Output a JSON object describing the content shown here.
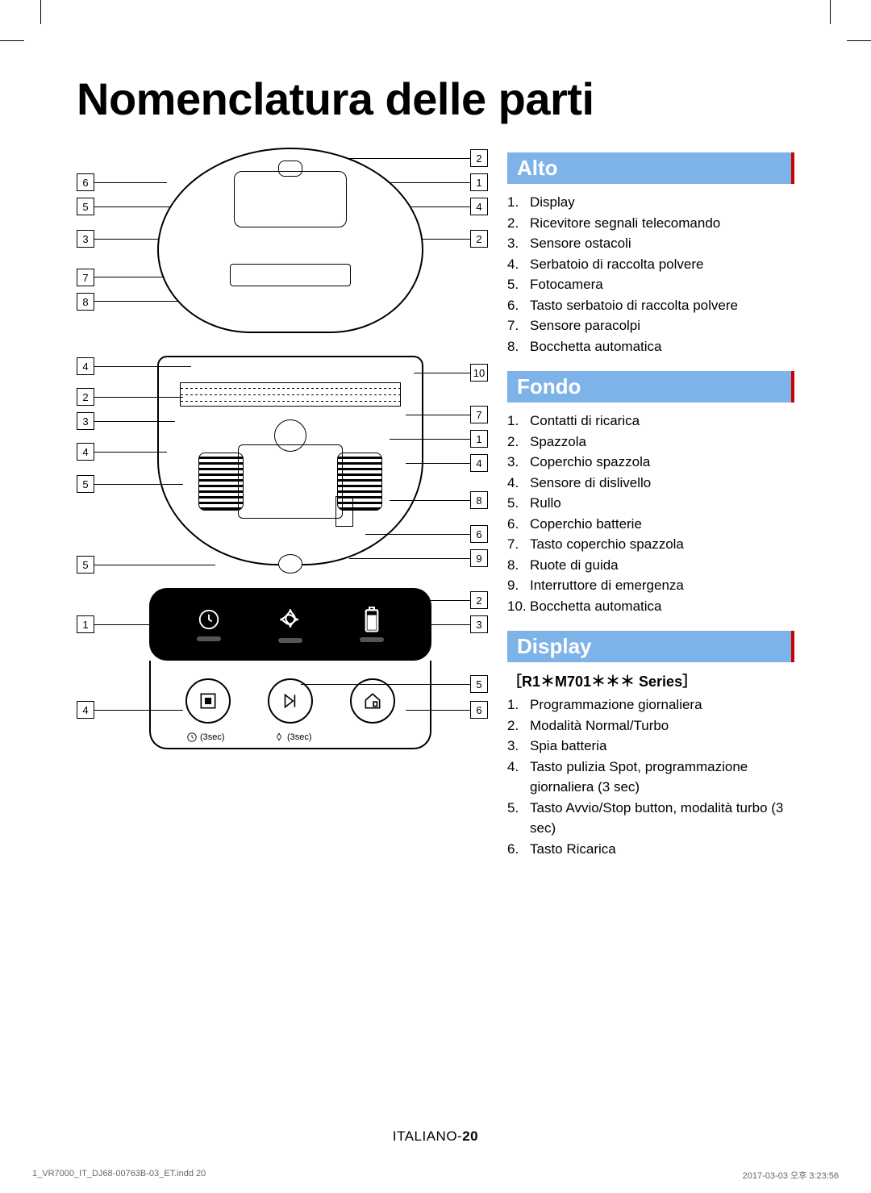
{
  "title": "Nomenclatura delle parti",
  "sections": {
    "alto": {
      "heading": "Alto",
      "items": [
        "Display",
        "Ricevitore segnali telecomando",
        "Sensore ostacoli",
        "Serbatoio di raccolta polvere",
        "Fotocamera",
        "Tasto serbatoio di raccolta polvere",
        "Sensore paracolpi",
        "Bocchetta automatica"
      ],
      "callouts_left": [
        "6",
        "5",
        "3",
        "7",
        "8"
      ],
      "callouts_right": [
        "2",
        "1",
        "4",
        "2"
      ]
    },
    "fondo": {
      "heading": "Fondo",
      "items": [
        "Contatti di ricarica",
        "Spazzola",
        "Coperchio spazzola",
        "Sensore di dislivello",
        "Rullo",
        "Coperchio batterie",
        "Tasto coperchio spazzola",
        "Ruote di guida",
        "Interruttore di emergenza",
        "Bocchetta automatica"
      ],
      "callouts_left": [
        "4",
        "2",
        "3",
        "4",
        "5",
        "5"
      ],
      "callouts_right": [
        "10",
        "7",
        "1",
        "4",
        "8",
        "6",
        "9"
      ]
    },
    "display": {
      "heading": "Display",
      "subheading": "［R1＊M701＊＊＊ Series］",
      "items": [
        "Programmazione giornaliera",
        "Modalità Normal/Turbo",
        "Spia batteria",
        "Tasto pulizia Spot, programmazione giornaliera (3 sec)",
        "Tasto Avvio/Stop button, modalità turbo (3 sec)",
        "Tasto Ricarica"
      ],
      "callouts_left": [
        "1",
        "4"
      ],
      "callouts_right": [
        "2",
        "3",
        "5",
        "6"
      ],
      "panel": {
        "sub_label_1": "(3sec)",
        "sub_label_2": "(3sec)"
      }
    }
  },
  "footer": {
    "lang": "ITALIANO-",
    "page": "20",
    "file": "1_VR7000_IT_DJ68-00763B-03_ET.indd   20",
    "timestamp": "2017-03-03   오후 3:23:56"
  },
  "colors": {
    "accent": "#7db3e8",
    "accent_edge": "#c00000",
    "text": "#000000"
  }
}
